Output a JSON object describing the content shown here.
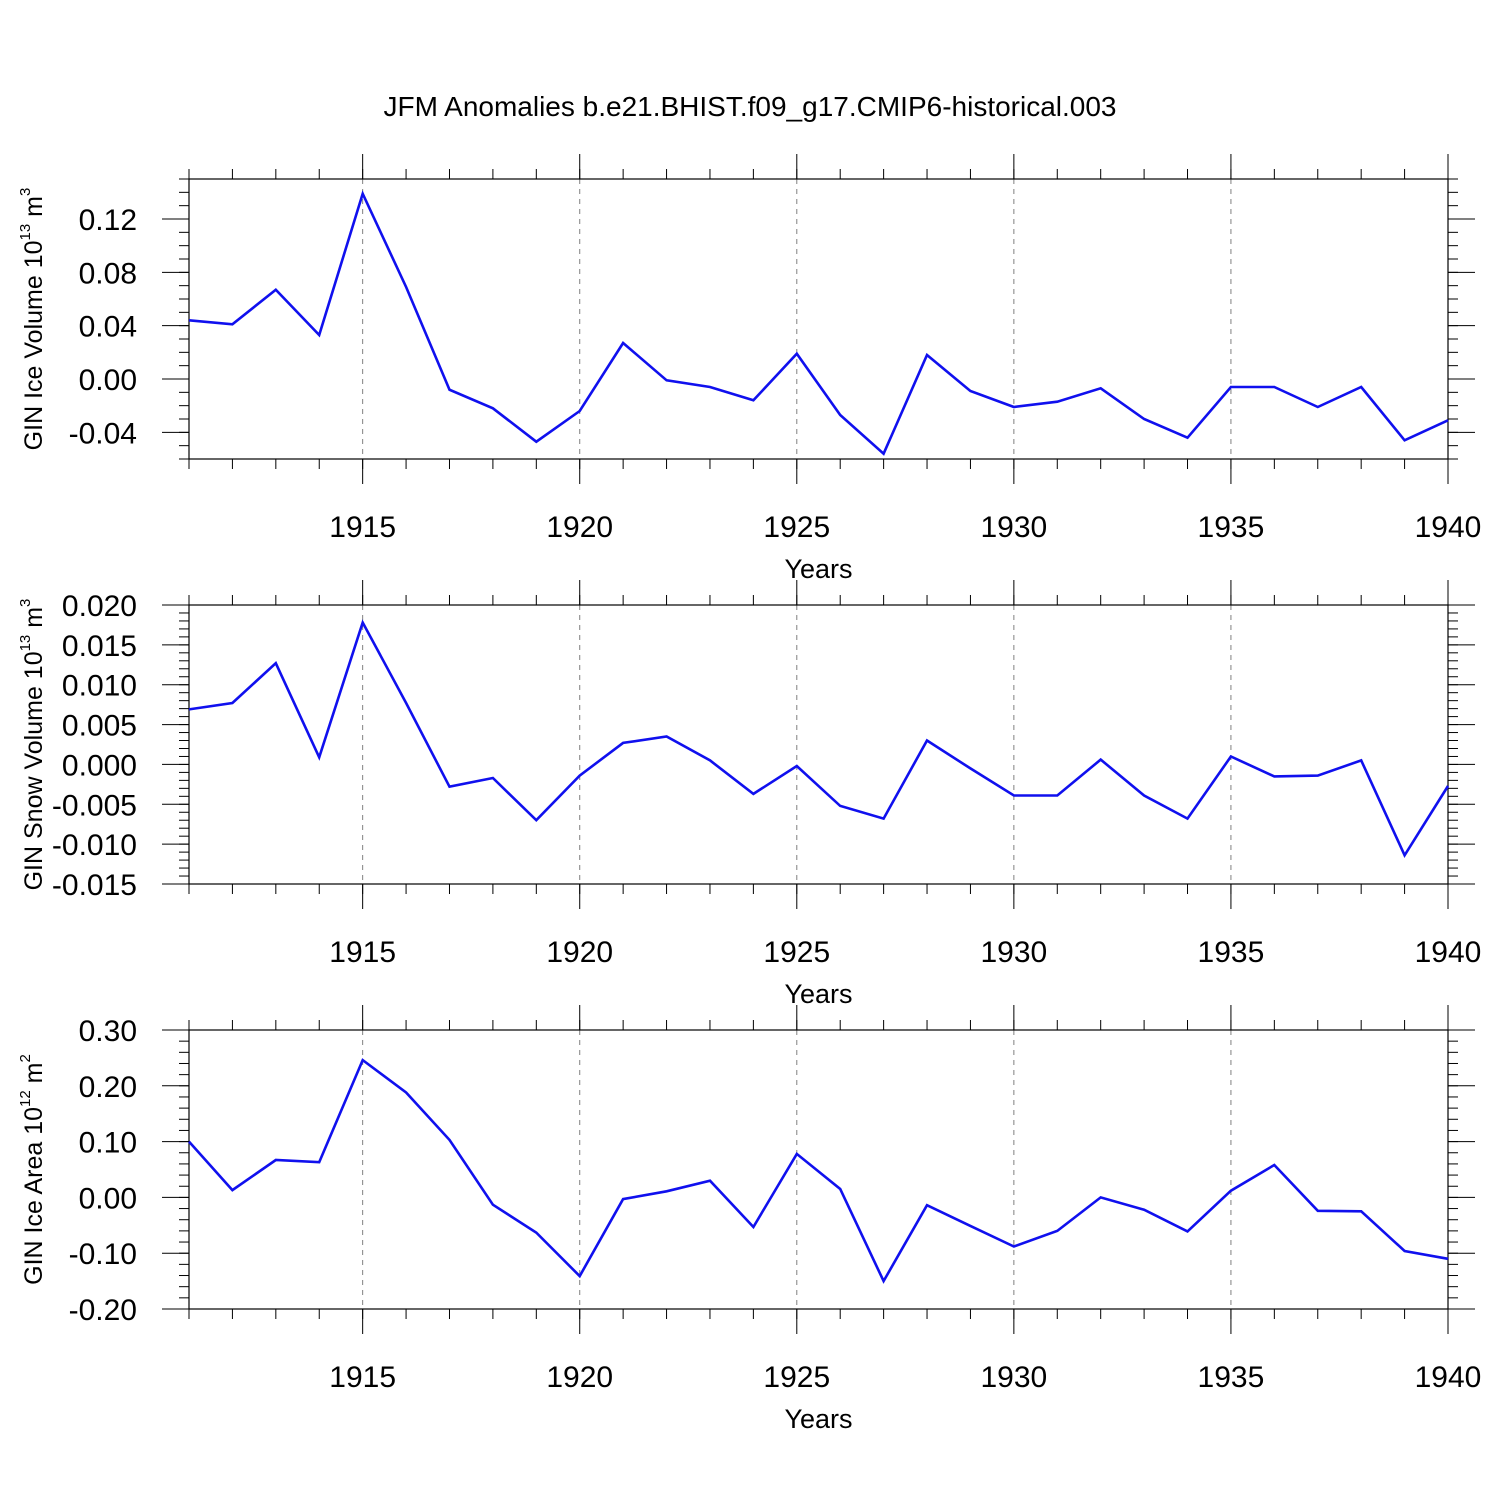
{
  "title": "JFM Anomalies b.e21.BHIST.f09_g17.CMIP6-historical.003",
  "colors": {
    "line": "#1010ee",
    "axis": "#000000",
    "grid": "#808080",
    "background": "#ffffff"
  },
  "chart_data": [
    {
      "type": "line",
      "ylabel": {
        "main": "GIN Ice Volume 10",
        "sup": "13",
        "mid": " m",
        "sup2": "3"
      },
      "xlabel": "Years",
      "x": [
        1911,
        1912,
        1913,
        1914,
        1915,
        1916,
        1917,
        1918,
        1919,
        1920,
        1921,
        1922,
        1923,
        1924,
        1925,
        1926,
        1927,
        1928,
        1929,
        1930,
        1931,
        1932,
        1933,
        1934,
        1935,
        1936,
        1937,
        1938,
        1939,
        1940
      ],
      "values": [
        0.044,
        0.041,
        0.067,
        0.033,
        0.139,
        0.069,
        -0.008,
        -0.022,
        -0.047,
        -0.024,
        0.027,
        -0.001,
        -0.006,
        -0.016,
        0.019,
        -0.027,
        -0.056,
        0.018,
        -0.009,
        -0.021,
        -0.017,
        -0.007,
        -0.03,
        -0.044,
        -0.006,
        -0.006,
        -0.021,
        -0.006,
        -0.046,
        -0.031
      ],
      "xlim": [
        1911,
        1940
      ],
      "ylim": [
        -0.06,
        0.15
      ],
      "yticks": [
        -0.04,
        0.0,
        0.04,
        0.08,
        0.12
      ],
      "ytick_labels": [
        "-0.04",
        "0.00",
        "0.04",
        "0.08",
        "0.12"
      ],
      "xticks": [
        1915,
        1920,
        1925,
        1930,
        1935,
        1940
      ],
      "xtick_labels": [
        "1915",
        "1920",
        "1925",
        "1930",
        "1935",
        "1940"
      ],
      "minor_ystep": 0.01,
      "grid": "vertical dashed at major x ticks"
    },
    {
      "type": "line",
      "ylabel": {
        "main": "GIN Snow Volume 10",
        "sup": "13",
        "mid": " m",
        "sup2": "3"
      },
      "xlabel": "Years",
      "x": [
        1911,
        1912,
        1913,
        1914,
        1915,
        1916,
        1917,
        1918,
        1919,
        1920,
        1921,
        1922,
        1923,
        1924,
        1925,
        1926,
        1927,
        1928,
        1929,
        1930,
        1931,
        1932,
        1933,
        1934,
        1935,
        1936,
        1937,
        1938,
        1939,
        1940
      ],
      "values": [
        0.0069,
        0.0077,
        0.0127,
        0.0009,
        0.0178,
        0.0077,
        -0.0028,
        -0.0017,
        -0.007,
        -0.0014,
        0.0027,
        0.0035,
        0.0005,
        -0.0037,
        -0.0002,
        -0.0052,
        -0.0068,
        0.003,
        -0.0005,
        -0.0039,
        -0.0039,
        0.0006,
        -0.0039,
        -0.0068,
        0.001,
        -0.0015,
        -0.0014,
        0.0005,
        -0.0114,
        -0.0027
      ],
      "xlim": [
        1911,
        1940
      ],
      "ylim": [
        -0.015,
        0.02
      ],
      "yticks": [
        -0.015,
        -0.01,
        -0.005,
        0.0,
        0.005,
        0.01,
        0.015,
        0.02
      ],
      "ytick_labels": [
        "-0.015",
        "-0.010",
        "-0.005",
        "0.000",
        "0.005",
        "0.010",
        "0.015",
        "0.020"
      ],
      "xticks": [
        1915,
        1920,
        1925,
        1930,
        1935,
        1940
      ],
      "xtick_labels": [
        "1915",
        "1920",
        "1925",
        "1930",
        "1935",
        "1940"
      ],
      "minor_ystep": 0.001,
      "grid": "vertical dashed at major x ticks"
    },
    {
      "type": "line",
      "ylabel": {
        "main": "GIN Ice Area 10",
        "sup": "12",
        "mid": " m",
        "sup2": "2"
      },
      "xlabel": "Years",
      "x": [
        1911,
        1912,
        1913,
        1914,
        1915,
        1916,
        1917,
        1918,
        1919,
        1920,
        1921,
        1922,
        1923,
        1924,
        1925,
        1926,
        1927,
        1928,
        1929,
        1930,
        1931,
        1932,
        1933,
        1934,
        1935,
        1936,
        1937,
        1938,
        1939,
        1940
      ],
      "values": [
        0.1,
        0.013,
        0.067,
        0.063,
        0.246,
        0.188,
        0.103,
        -0.013,
        -0.063,
        -0.141,
        -0.003,
        0.011,
        0.03,
        -0.053,
        0.078,
        0.015,
        -0.15,
        -0.014,
        -0.051,
        -0.088,
        -0.06,
        0.0,
        -0.022,
        -0.061,
        0.012,
        0.058,
        -0.024,
        -0.025,
        -0.096,
        -0.11
      ],
      "xlim": [
        1911,
        1940
      ],
      "ylim": [
        -0.2,
        0.3
      ],
      "yticks": [
        -0.2,
        -0.1,
        0.0,
        0.1,
        0.2,
        0.3
      ],
      "ytick_labels": [
        "-0.20",
        "-0.10",
        "0.00",
        "0.10",
        "0.20",
        "0.30"
      ],
      "xticks": [
        1915,
        1920,
        1925,
        1930,
        1935,
        1940
      ],
      "xtick_labels": [
        "1915",
        "1920",
        "1925",
        "1930",
        "1935",
        "1940"
      ],
      "minor_ystep": 0.02,
      "grid": "vertical dashed at major x ticks"
    }
  ]
}
